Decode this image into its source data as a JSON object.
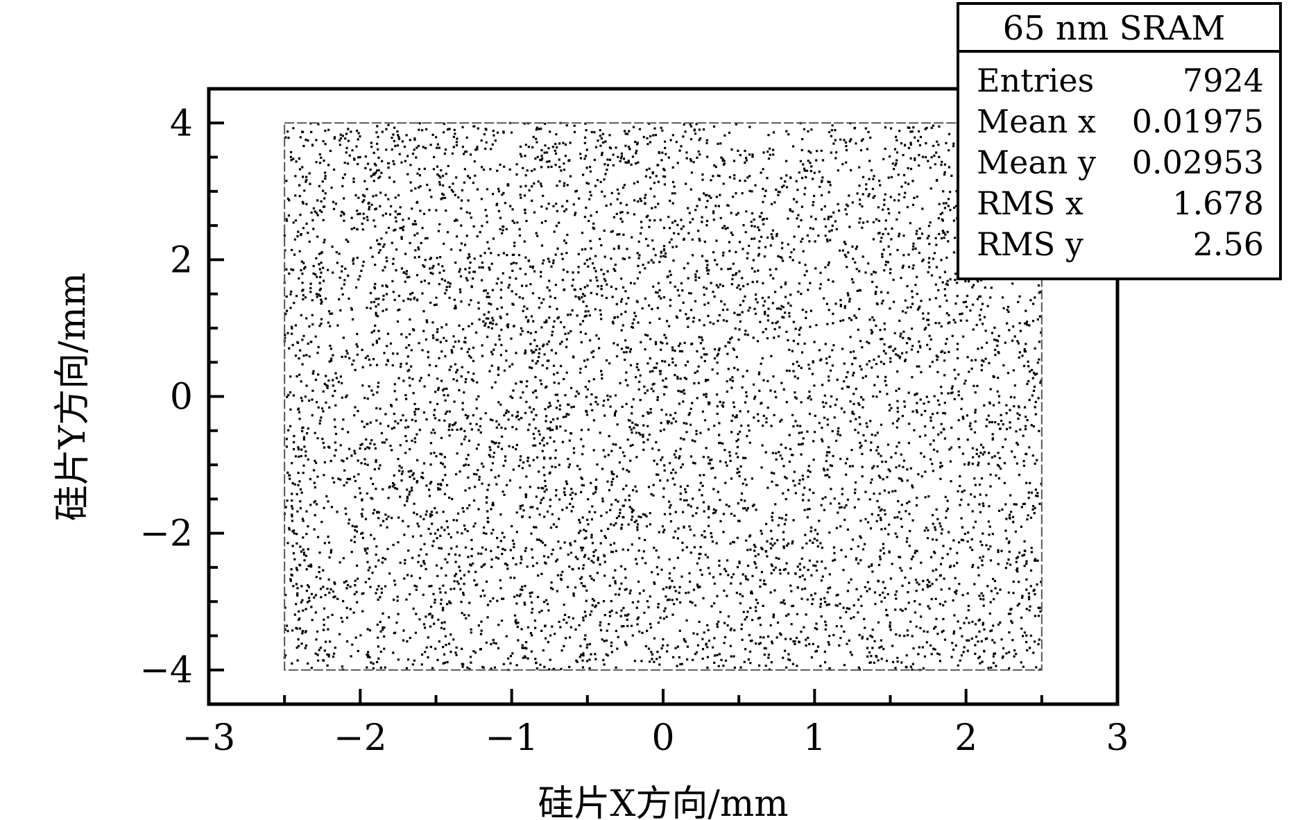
{
  "chart_data": {
    "type": "scatter",
    "title": "",
    "xlabel": "硅片X方向/mm",
    "ylabel": "硅片Y方向/mm",
    "xlim": [
      -3,
      3
    ],
    "ylim": [
      -4.5,
      4.5
    ],
    "xticks": [
      "−3",
      "−2",
      "−1",
      "0",
      "1",
      "2",
      "3"
    ],
    "yticks": [
      "−4",
      "−2",
      "0",
      "2",
      "4"
    ],
    "x_tick_values": [
      -3,
      -2,
      -1,
      0,
      1,
      2,
      3
    ],
    "y_tick_values": [
      -4,
      -2,
      0,
      2,
      4
    ],
    "region": {
      "x": [
        -2.5,
        2.5
      ],
      "y": [
        -4,
        4
      ]
    },
    "point_color": "#000000",
    "point_note": "about 7924 uniformly scattered points filling the region",
    "stats_box": {
      "placement": "top-right",
      "title": "65 nm SRAM",
      "rows": [
        {
          "label": "Entries",
          "value": "7924"
        },
        {
          "label": "Mean x",
          "value": "0.01975"
        },
        {
          "label": "Mean y",
          "value": "0.02953"
        },
        {
          "label": "RMS x",
          "value": "1.678"
        },
        {
          "label": "RMS y",
          "value": "2.56"
        }
      ]
    }
  }
}
